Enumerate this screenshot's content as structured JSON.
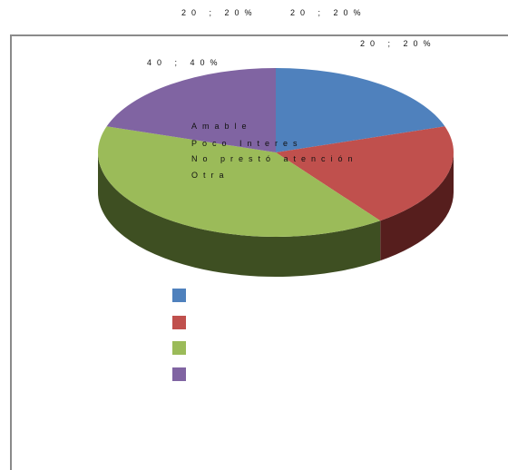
{
  "chart_data": {
    "type": "pie",
    "title": "",
    "categories": [
      "Amable",
      "Poco Interes",
      "No prestó atención",
      "Otra"
    ],
    "values": [
      20,
      20,
      40,
      20
    ],
    "percentages": [
      "20%",
      "20%",
      "40%",
      "20%"
    ],
    "data_labels": [
      "20 ; 20%",
      "20 ; 20%",
      "40 ; 40%",
      "20 ; 20%"
    ],
    "colors": [
      "#4f81bd",
      "#c0504d",
      "#9bbb59",
      "#8064a2"
    ],
    "dark_colors": [
      "#2f4f7a",
      "#561e1d",
      "#3e4f22",
      "#4a3866"
    ],
    "legend_placement": "bottom",
    "three_d": true
  }
}
